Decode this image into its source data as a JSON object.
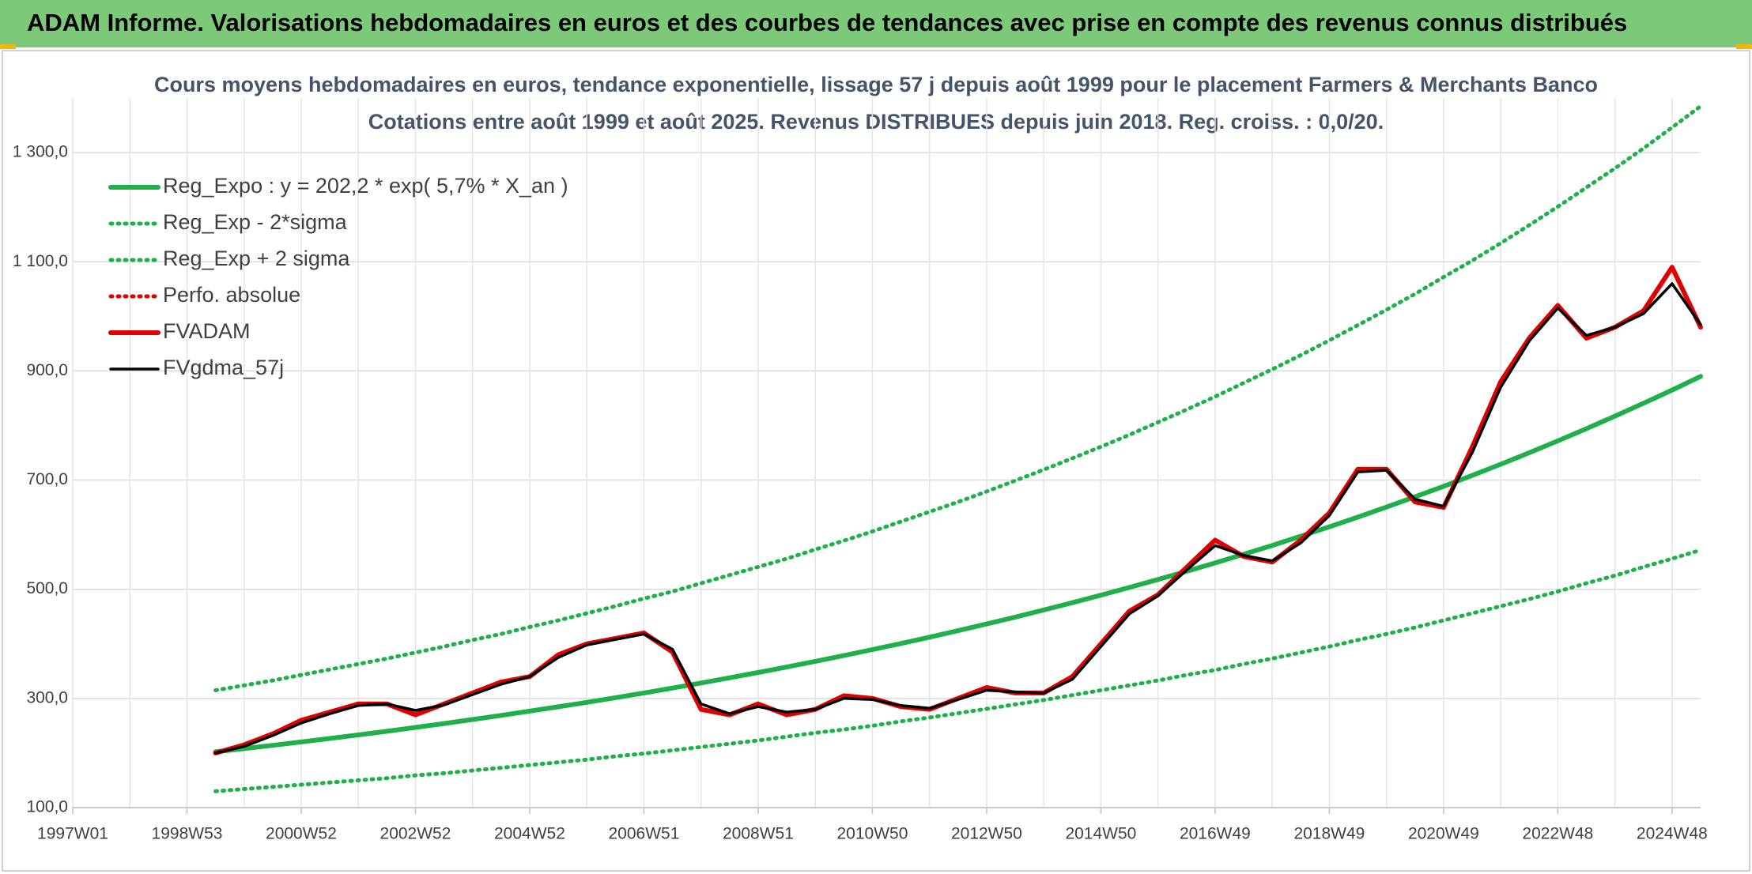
{
  "header": {
    "title": "ADAM Informe. Valorisations hebdomadaires en euros et des courbes de tendances avec prise en compte des revenus connus distribués"
  },
  "chart_data": {
    "type": "line",
    "title": "Cours moyens hebdomadaires en euros, tendance exponentielle, lissage 57 j depuis août 1999 pour le placement Farmers & Merchants Banco",
    "subtitle": "Cotations entre août 1999 et août 2025. Revenus DISTRIBUES depuis juin 2018. Reg. croiss. : 0,0/20.",
    "categories": [
      "1997W01",
      null,
      null,
      null,
      "1998W53",
      null,
      null,
      null,
      "2000W52",
      null,
      null,
      null,
      "2002W52",
      null,
      null,
      null,
      "2004W52",
      null,
      null,
      null,
      "2006W51",
      null,
      null,
      null,
      "2008W51",
      null,
      null,
      null,
      "2010W50",
      null,
      null,
      null,
      "2012W50",
      null,
      null,
      null,
      "2014W50",
      null,
      null,
      null,
      "2016W49",
      null,
      null,
      null,
      "2018W49",
      null,
      null,
      null,
      "2020W49",
      null,
      null,
      null,
      "2022W48",
      null,
      null,
      null,
      "2024W48",
      null
    ],
    "ylim": [
      100,
      1400
    ],
    "yticks": [
      {
        "value": 100,
        "label": "100,0"
      },
      {
        "value": 300,
        "label": "300,0"
      },
      {
        "value": 500,
        "label": "500,0"
      },
      {
        "value": 700,
        "label": "700,0"
      },
      {
        "value": 900,
        "label": "900,0"
      },
      {
        "value": 1100,
        "label": "1 100,0"
      },
      {
        "value": 1300,
        "label": "1 300,0"
      }
    ],
    "grid": true,
    "series": [
      {
        "name": "Reg_Expo : y = 202,2 * exp( 5,7% *  X_an )",
        "color": "#1fb04b",
        "line_style": "solid",
        "values": [
          null,
          null,
          null,
          null,
          null,
          202.2,
          208.0,
          214.1,
          220.3,
          226.6,
          233.2,
          239.9,
          246.9,
          254.0,
          261.4,
          268.9,
          276.7,
          284.7,
          292.9,
          301.4,
          310.1,
          319.0,
          328.3,
          337.8,
          347.5,
          357.6,
          367.9,
          378.5,
          389.5,
          400.7,
          412.3,
          424.2,
          436.5,
          449.1,
          462.1,
          475.4,
          489.2,
          503.3,
          517.9,
          532.8,
          548.2,
          564.1,
          580.4,
          597.2,
          614.4,
          632.2,
          650.5,
          669.3,
          688.6,
          708.5,
          729.0,
          750.1,
          771.8,
          794.1,
          817.1,
          840.7,
          865.0,
          890.0
        ]
      },
      {
        "name": "Reg_Exp - 2*sigma",
        "color": "#1fb04b",
        "line_style": "dotted",
        "values": [
          null,
          null,
          null,
          null,
          null,
          130,
          134,
          138,
          142,
          146,
          150,
          154,
          159,
          163,
          168,
          173,
          178,
          183,
          188,
          194,
          199,
          205,
          211,
          217,
          223,
          230,
          237,
          243,
          250,
          258,
          265,
          273,
          281,
          289,
          297,
          306,
          315,
          324,
          333,
          343,
          352,
          363,
          373,
          384,
          395,
          407,
          418,
          430,
          443,
          456,
          469,
          482,
          496,
          511,
          525,
          541,
          556,
          572
        ]
      },
      {
        "name": "Reg_Exp + 2 sigma",
        "color": "#1fb04b",
        "line_style": "dotted",
        "values": [
          null,
          null,
          null,
          null,
          null,
          315,
          324,
          333,
          343,
          353,
          363,
          373,
          384,
          395,
          407,
          418,
          431,
          443,
          456,
          469,
          483,
          496,
          511,
          526,
          541,
          556,
          573,
          589,
          606,
          624,
          642,
          660,
          679,
          699,
          719,
          740,
          761,
          783,
          806,
          829,
          853,
          878,
          903,
          929,
          956,
          984,
          1012,
          1041,
          1072,
          1102,
          1134,
          1167,
          1201,
          1236,
          1271,
          1308,
          1346,
          1385
        ]
      },
      {
        "name": "Perfo. absolue",
        "color": "#e00000",
        "line_style": "dotted",
        "values": [
          null,
          null,
          null,
          null,
          null,
          200,
          215,
          235,
          260,
          275,
          290,
          290,
          270,
          290,
          310,
          330,
          340,
          380,
          400,
          410,
          420,
          385,
          280,
          270,
          290,
          270,
          280,
          305,
          300,
          285,
          280,
          300,
          320,
          310,
          310,
          340,
          400,
          460,
          490,
          540,
          590,
          560,
          550,
          590,
          640,
          720,
          720,
          660,
          650,
          760,
          880,
          960,
          1020,
          960,
          980,
          1010,
          1090,
          980
        ]
      },
      {
        "name": "FVADAM",
        "color": "#e00000",
        "line_style": "solid",
        "values": [
          null,
          null,
          null,
          null,
          null,
          200,
          215,
          235,
          260,
          275,
          290,
          290,
          270,
          290,
          310,
          330,
          340,
          380,
          400,
          410,
          420,
          385,
          280,
          270,
          290,
          270,
          280,
          305,
          300,
          285,
          280,
          300,
          320,
          310,
          310,
          340,
          400,
          460,
          490,
          540,
          590,
          560,
          550,
          590,
          640,
          720,
          720,
          660,
          650,
          760,
          880,
          960,
          1020,
          960,
          980,
          1010,
          1090,
          980
        ]
      },
      {
        "name": "FVgdma_57j",
        "color": "#000000",
        "line_style": "solid",
        "values": [
          null,
          null,
          null,
          null,
          null,
          200,
          212,
          232,
          255,
          272,
          287,
          290,
          278,
          288,
          307,
          326,
          340,
          375,
          398,
          408,
          418,
          390,
          290,
          272,
          285,
          275,
          280,
          300,
          298,
          287,
          282,
          298,
          315,
          312,
          310,
          335,
          395,
          455,
          488,
          535,
          580,
          562,
          552,
          585,
          635,
          715,
          718,
          665,
          652,
          750,
          870,
          955,
          1015,
          965,
          980,
          1005,
          1060,
          985
        ]
      }
    ]
  }
}
